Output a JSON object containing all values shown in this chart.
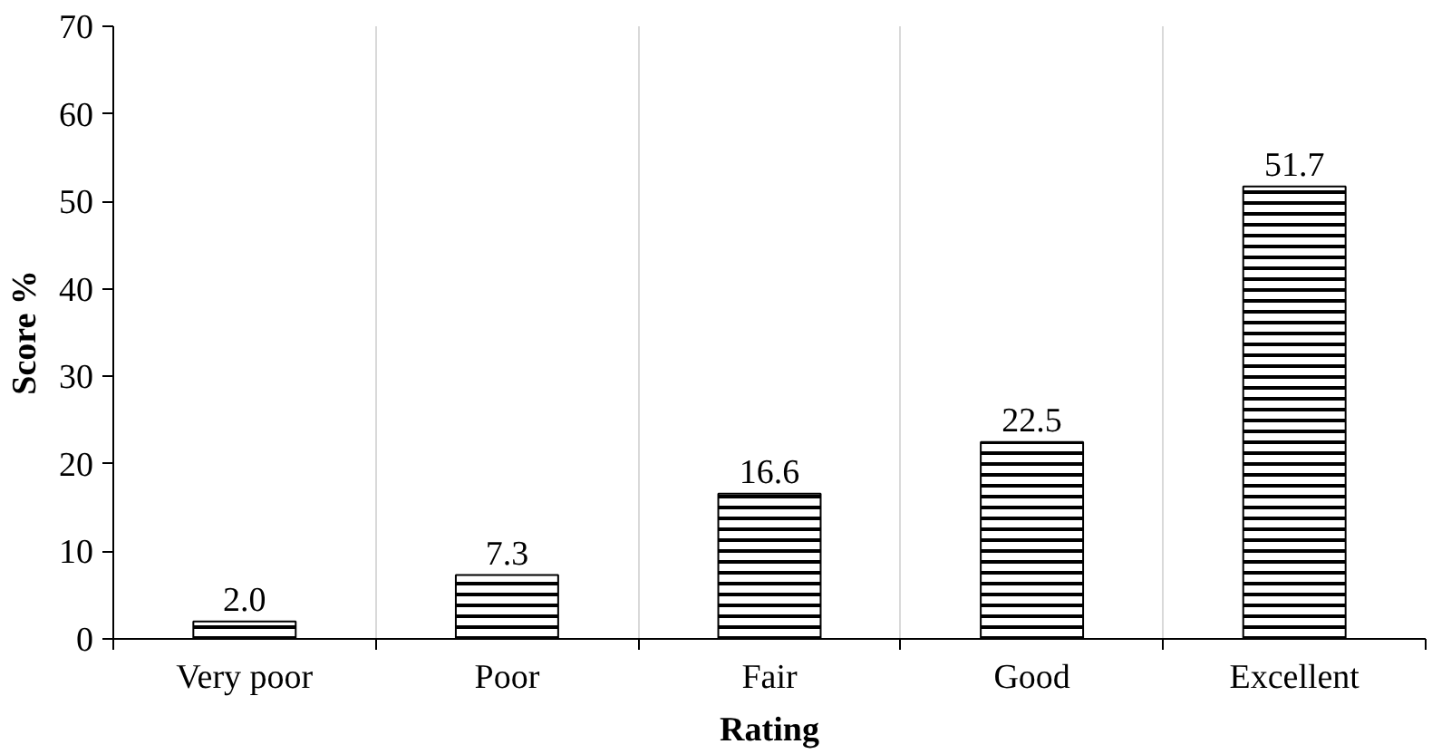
{
  "chart_data": {
    "type": "bar",
    "xlabel": "Rating",
    "ylabel": "Score %",
    "categories": [
      "Very poor",
      "Poor",
      "Fair",
      "Good",
      "Excellent"
    ],
    "values": [
      2.0,
      7.3,
      16.6,
      22.5,
      51.7
    ],
    "value_labels": [
      "2.0",
      "7.3",
      "16.6",
      "22.5",
      "51.7"
    ],
    "color": "#000000",
    "ylim": [
      0,
      70
    ],
    "yticks": [
      0,
      10,
      20,
      30,
      40,
      50,
      60,
      70
    ],
    "grid": "x"
  }
}
